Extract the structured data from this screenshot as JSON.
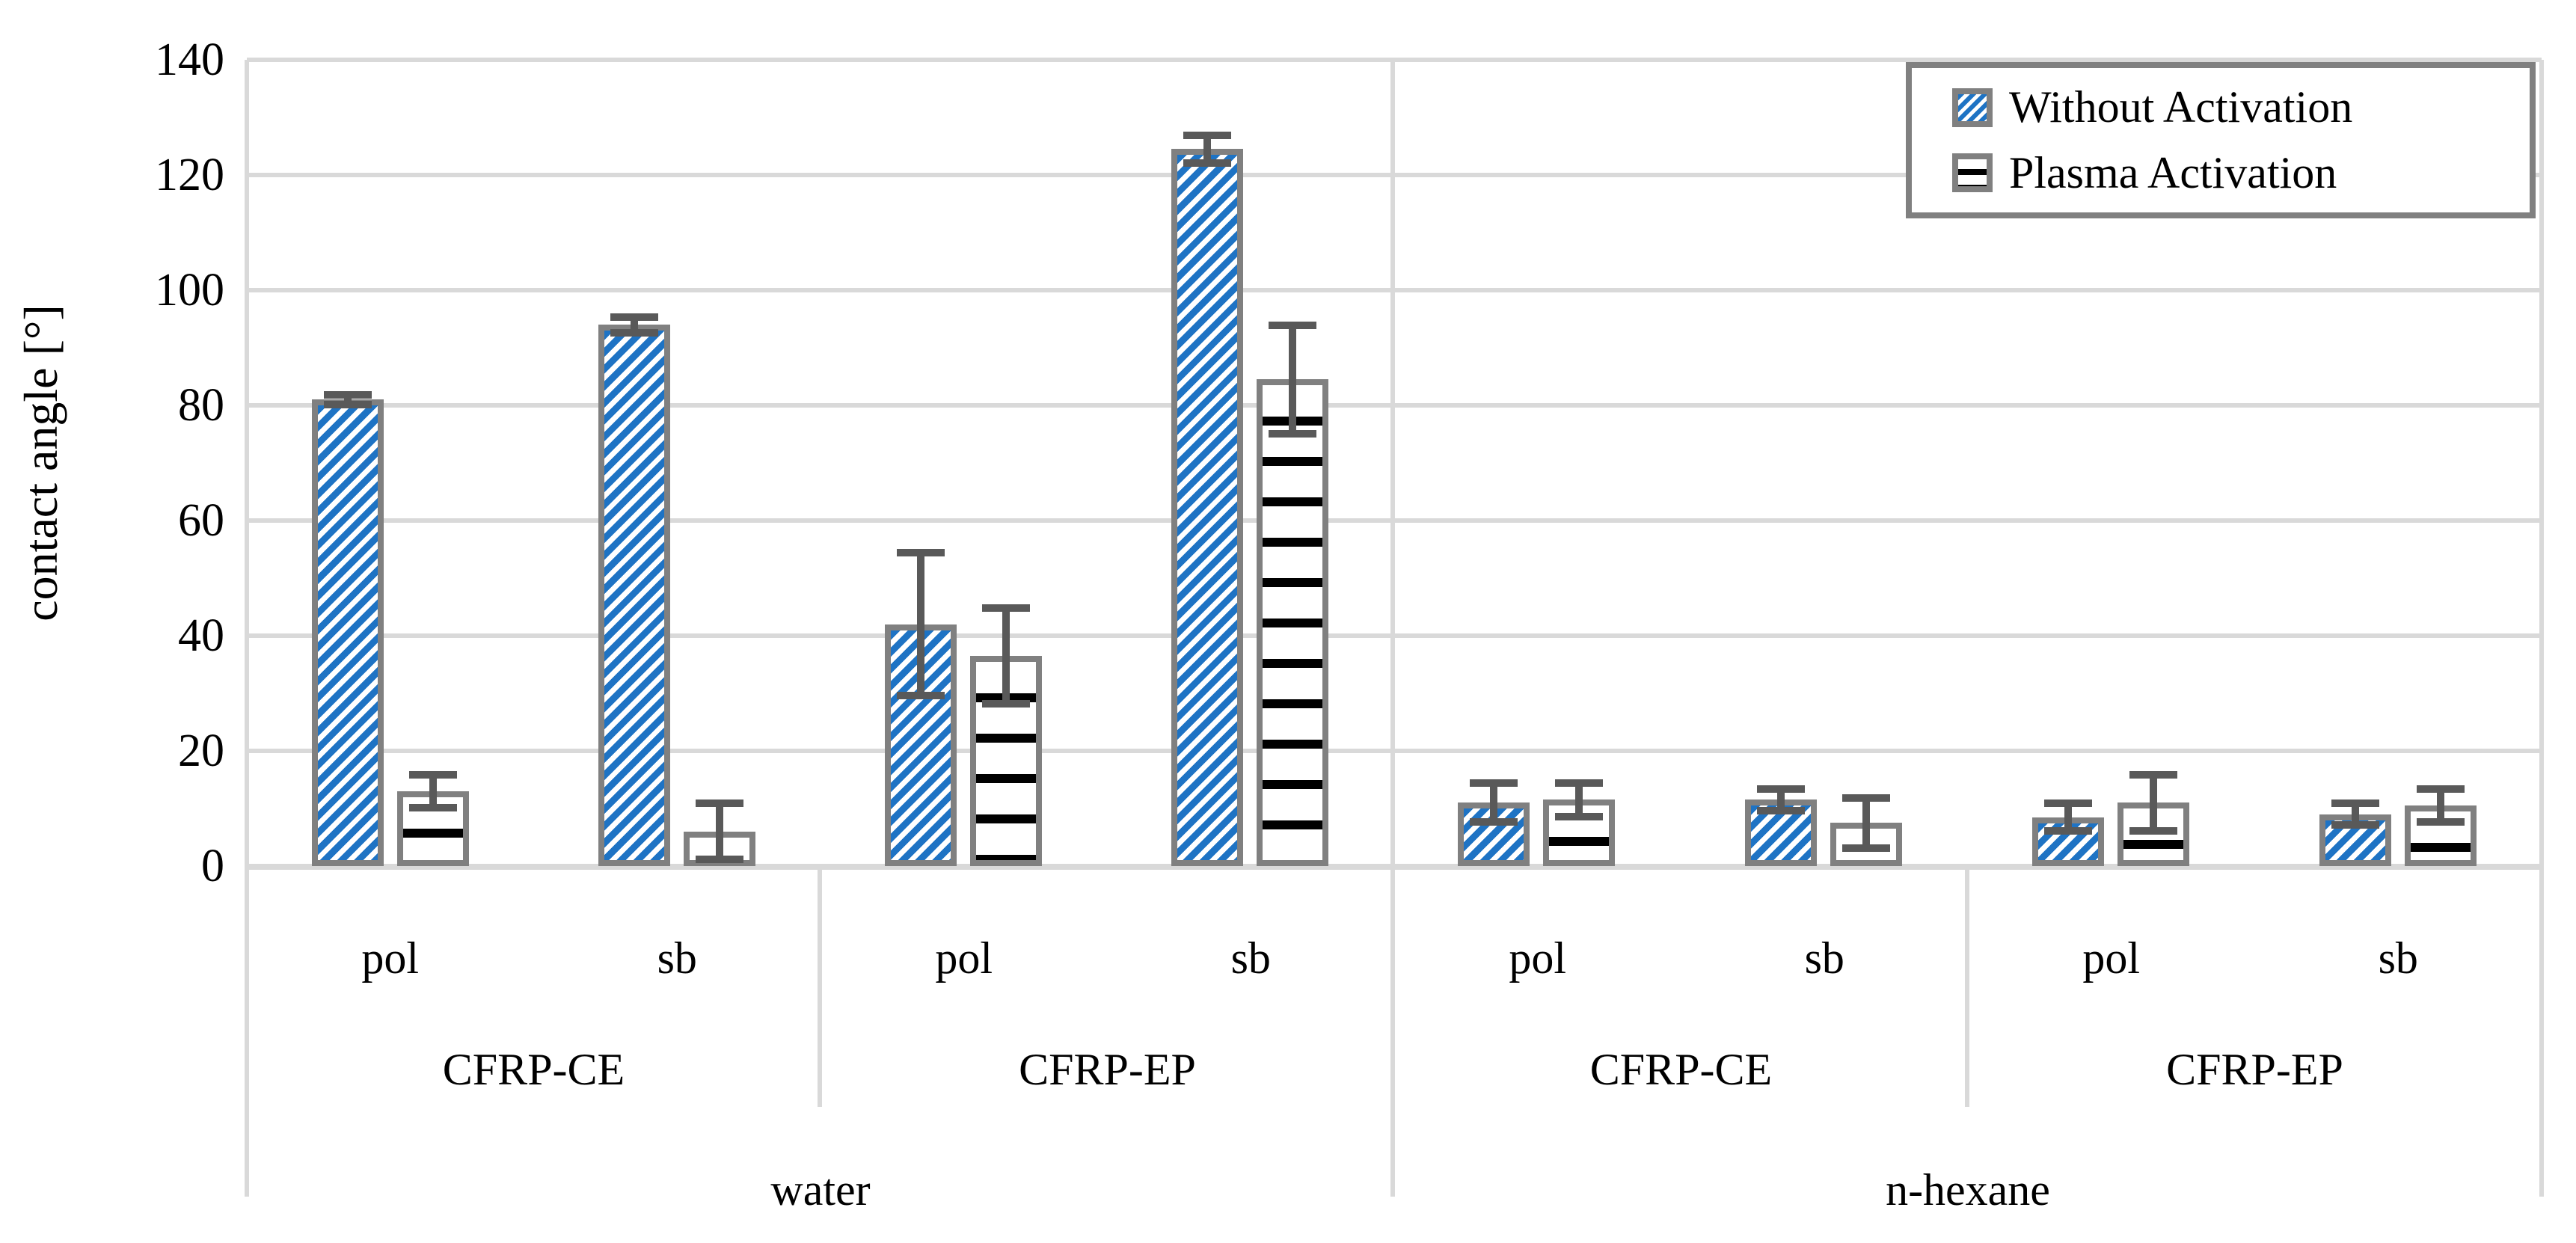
{
  "chart_data": {
    "type": "bar",
    "title": "",
    "ylabel": "contact angle [°]",
    "xlabel": "",
    "ylim": [
      0,
      140
    ],
    "yticks": [
      0,
      20,
      40,
      60,
      80,
      100,
      120,
      140
    ],
    "grid": true,
    "legend": [
      "Without Activation",
      "Plasma Activation"
    ],
    "legend_position": "top-right",
    "series_names": [
      "Without Activation",
      "Plasma Activation"
    ],
    "colors": {
      "without_activation_stripe": "#1E73C4",
      "plasma_activation_stripe": "#000000",
      "bar_border": "#808080",
      "error_bar": "#595959",
      "gridline": "#D9D9D9",
      "background": "#ffffff",
      "text": "#000000"
    },
    "groups": [
      {
        "solvent": "water",
        "materials": [
          {
            "name": "CFRP-CE",
            "categories": [
              {
                "label": "pol",
                "without": {
                  "value": 81,
                  "error": 1
                },
                "plasma": {
                  "value": 13,
                  "error": 3
                }
              },
              {
                "label": "sb",
                "without": {
                  "value": 94,
                  "error": 1.5
                },
                "plasma": {
                  "value": 6,
                  "error": 5
                }
              }
            ]
          },
          {
            "name": "CFRP-EP",
            "categories": [
              {
                "label": "pol",
                "without": {
                  "value": 42,
                  "error": 12.5
                },
                "plasma": {
                  "value": 36.5,
                  "error": 8.5
                }
              },
              {
                "label": "sb",
                "without": {
                  "value": 124.5,
                  "error": 2.5
                },
                "plasma": {
                  "value": 84.5,
                  "error": 9.5
                }
              }
            ]
          }
        ]
      },
      {
        "solvent": "n-hexane",
        "materials": [
          {
            "name": "CFRP-CE",
            "categories": [
              {
                "label": "pol",
                "without": {
                  "value": 11,
                  "error": 3.5
                },
                "plasma": {
                  "value": 11.5,
                  "error": 3
                }
              },
              {
                "label": "sb",
                "without": {
                  "value": 11.5,
                  "error": 2
                },
                "plasma": {
                  "value": 7.5,
                  "error": 4.5
                }
              }
            ]
          },
          {
            "name": "CFRP-EP",
            "categories": [
              {
                "label": "pol",
                "without": {
                  "value": 8.5,
                  "error": 2.5
                },
                "plasma": {
                  "value": 11,
                  "error": 5
                }
              },
              {
                "label": "sb",
                "without": {
                  "value": 9,
                  "error": 2
                },
                "plasma": {
                  "value": 10.5,
                  "error": 3
                }
              }
            ]
          }
        ]
      }
    ]
  }
}
